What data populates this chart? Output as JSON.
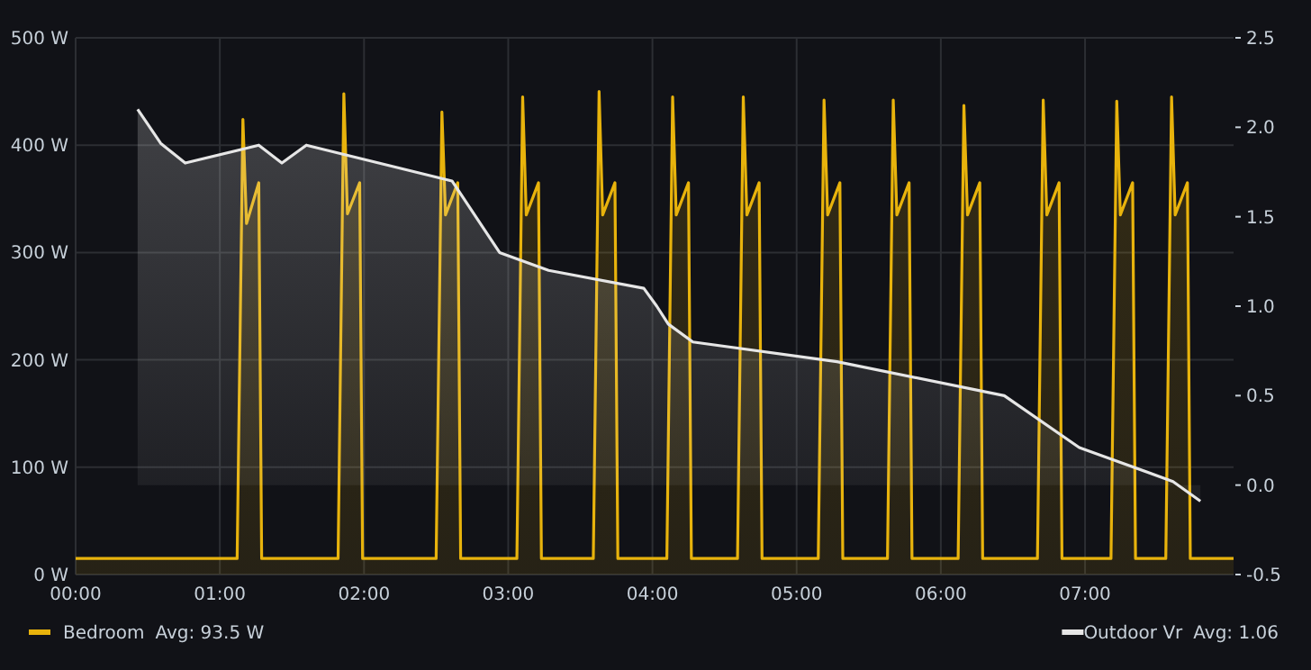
{
  "chart_data": {
    "type": "area",
    "xlim": [
      0,
      8.03
    ],
    "xticks": [
      {
        "value": 0,
        "label": "00:00"
      },
      {
        "value": 1,
        "label": "01:00"
      },
      {
        "value": 2,
        "label": "02:00"
      },
      {
        "value": 3,
        "label": "03:00"
      },
      {
        "value": 4,
        "label": "04:00"
      },
      {
        "value": 5,
        "label": "05:00"
      },
      {
        "value": 6,
        "label": "06:00"
      },
      {
        "value": 7,
        "label": "07:00"
      }
    ],
    "ylim": [
      0,
      500
    ],
    "yticks": [
      {
        "value": 0,
        "label": "0 W"
      },
      {
        "value": 100,
        "label": "100 W"
      },
      {
        "value": 200,
        "label": "200 W"
      },
      {
        "value": 300,
        "label": "300 W"
      },
      {
        "value": 400,
        "label": "400 W"
      },
      {
        "value": 500,
        "label": "500 W"
      }
    ],
    "y2lim": [
      -0.5,
      2.5
    ],
    "y2ticks": [
      -0.5,
      {
        "value": 0,
        "label": "0.0"
      },
      0.5,
      {
        "value": 1,
        "label": "1.0"
      },
      1.5,
      {
        "value": 2,
        "label": "2.0"
      },
      2.5
    ],
    "grid": true,
    "legend": "bottom",
    "annotations": [
      "Avg: 93.5 W",
      "Avg: 1.06"
    ],
    "series": [
      {
        "name": "Bedroom",
        "color": "#e8b30c",
        "x": [
          0,
          1.12,
          1.16,
          1.185,
          1.27,
          1.29,
          1.82,
          1.86,
          1.885,
          1.97,
          1.99,
          2.5,
          2.54,
          2.565,
          2.65,
          2.67,
          3.06,
          3.1,
          3.125,
          3.21,
          3.23,
          3.59,
          3.63,
          3.655,
          3.74,
          3.76,
          4.1,
          4.14,
          4.165,
          4.25,
          4.27,
          4.59,
          4.63,
          4.655,
          4.74,
          4.76,
          5.15,
          5.19,
          5.215,
          5.3,
          5.32,
          5.63,
          5.67,
          5.695,
          5.78,
          5.8,
          6.12,
          6.16,
          6.185,
          6.27,
          6.29,
          6.67,
          6.71,
          6.735,
          6.82,
          6.84,
          7.18,
          7.22,
          7.245,
          7.33,
          7.35,
          7.56,
          7.6,
          7.625,
          7.71,
          7.73,
          8.03
        ],
        "values": [
          15,
          15,
          424,
          327,
          365,
          15,
          15,
          448,
          336,
          365,
          15,
          15,
          431,
          335,
          365,
          15,
          15,
          445,
          335,
          365,
          15,
          15,
          450,
          335,
          365,
          15,
          15,
          445,
          335,
          365,
          15,
          15,
          445,
          335,
          365,
          15,
          15,
          442,
          335,
          365,
          15,
          15,
          442,
          335,
          365,
          15,
          15,
          437,
          335,
          365,
          15,
          15,
          442,
          335,
          365,
          15,
          15,
          441,
          335,
          365,
          15,
          15,
          445,
          335,
          365,
          15,
          15
        ]
      },
      {
        "name": "Outdoor Vr",
        "color": "#e6e6e6",
        "axis": "y2",
        "x": [
          0.43,
          0.59,
          0.76,
          1.27,
          1.43,
          1.6,
          2.61,
          2.94,
          3.28,
          3.94,
          4.03,
          4.11,
          4.28,
          5.28,
          6.44,
          6.96,
          7.61,
          7.8
        ],
        "values": [
          2.1,
          1.91,
          1.8,
          1.9,
          1.8,
          1.9,
          1.7,
          1.3,
          1.2,
          1.1,
          1.0,
          0.9,
          0.8,
          0.69,
          0.5,
          0.21,
          0.02,
          -0.09
        ]
      }
    ]
  }
}
